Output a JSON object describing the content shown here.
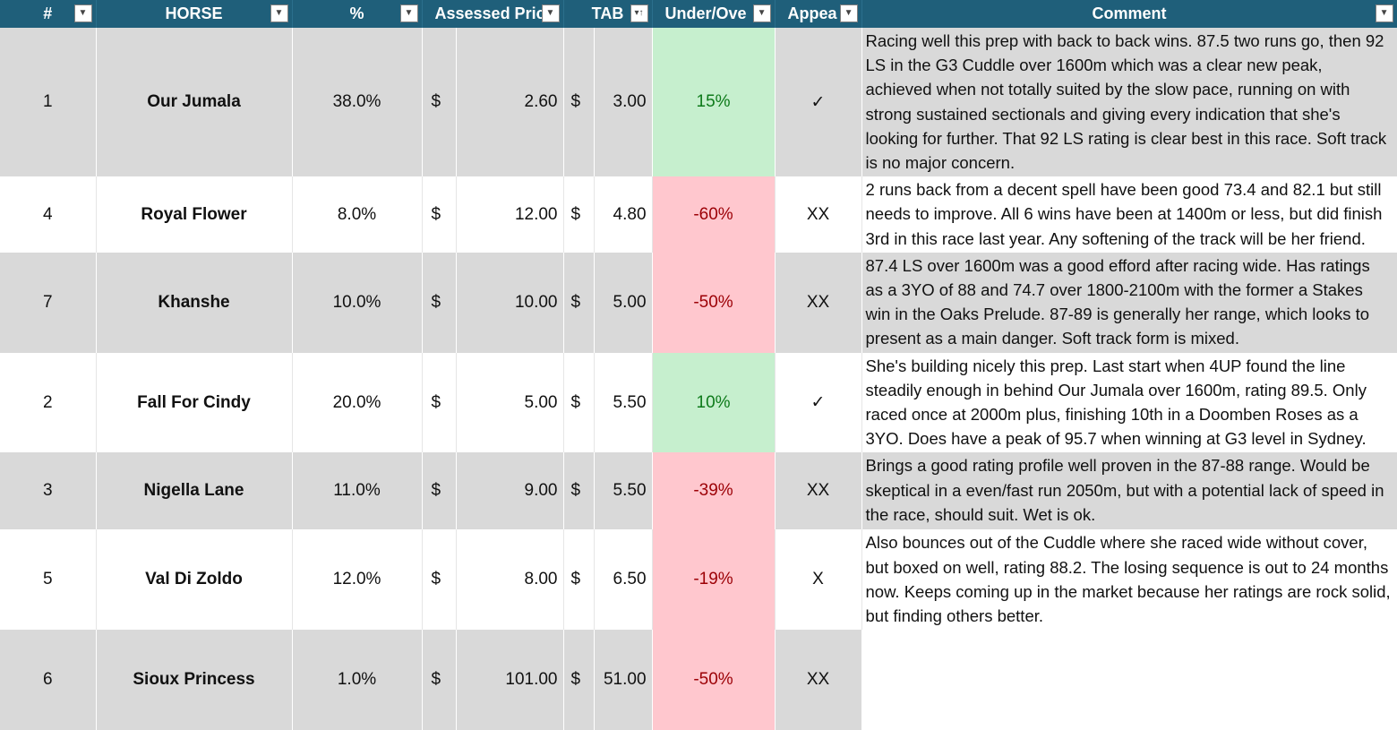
{
  "headers": {
    "num": "#",
    "horse": "HORSE",
    "pct": "%",
    "assessed": "Assessed Pric",
    "tab": "TAB",
    "under_over": "Under/Ove",
    "appeal": "Appea",
    "comment": "Comment"
  },
  "icons": {
    "filter": "dropdown-arrow",
    "sort": "sort-ascending"
  },
  "colors": {
    "header_bg": "#1f5f7a",
    "row_alt": "#d9d9d9",
    "good_fill": "#c6efce",
    "good_text": "#0d7a1a",
    "bad_fill": "#ffc7ce",
    "bad_text": "#9c0006"
  },
  "rows": [
    {
      "num": "1",
      "horse": "Our Jumala",
      "pct": "38.0%",
      "cur": "$",
      "assessed": "2.60",
      "tab_cur": "$",
      "tab": "3.00",
      "uo": "15%",
      "appeal": "✓",
      "comment": "Racing well this prep with back to back wins. 87.5 two runs go, then 92 LS in the G3 Cuddle over 1600m which was a clear new peak, achieved when not totally suited by the slow pace, running on with strong sustained sectionals and giving every indication that she's looking for further. That 92 LS rating is clear best in this race. Soft track is no major concern."
    },
    {
      "num": "4",
      "horse": "Royal Flower",
      "pct": "8.0%",
      "cur": "$",
      "assessed": "12.00",
      "tab_cur": "$",
      "tab": "4.80",
      "uo": "-60%",
      "appeal": "XX",
      "comment": "2 runs back from a decent spell have been good 73.4 and 82.1 but still needs to improve. All 6 wins have been at 1400m or less, but did finish 3rd in this race last year. Any softening of the track will be her friend."
    },
    {
      "num": "7",
      "horse": "Khanshe",
      "pct": "10.0%",
      "cur": "$",
      "assessed": "10.00",
      "tab_cur": "$",
      "tab": "5.00",
      "uo": "-50%",
      "appeal": "XX",
      "comment": "87.4 LS over 1600m was a good efford after racing wide. Has ratings as a 3YO of 88 and 74.7 over 1800-2100m with the former a Stakes win in the Oaks Prelude. 87-89 is generally her range, which looks to present as a main danger. Soft track form is mixed."
    },
    {
      "num": "2",
      "horse": "Fall For Cindy",
      "pct": "20.0%",
      "cur": "$",
      "assessed": "5.00",
      "tab_cur": "$",
      "tab": "5.50",
      "uo": "10%",
      "appeal": "✓",
      "comment": "She's building nicely this prep. Last start when 4UP found the line steadily enough in behind Our Jumala over 1600m, rating 89.5. Only raced once at 2000m plus, finishing 10th in a Doomben Roses as a 3YO. Does have a peak of 95.7 when winning at G3 level in Sydney."
    },
    {
      "num": "3",
      "horse": "Nigella Lane",
      "pct": "11.0%",
      "cur": "$",
      "assessed": "9.00",
      "tab_cur": "$",
      "tab": "5.50",
      "uo": "-39%",
      "appeal": "XX",
      "comment": "Brings a good rating profile well proven in the 87-88 range. Would be skeptical in a even/fast run 2050m, but with a potential lack of speed in the race, should suit. Wet is ok."
    },
    {
      "num": "5",
      "horse": "Val Di Zoldo",
      "pct": "12.0%",
      "cur": "$",
      "assessed": "8.00",
      "tab_cur": "$",
      "tab": "6.50",
      "uo": "-19%",
      "appeal": "X",
      "comment": "Also bounces out of the Cuddle where she raced wide without cover, but boxed on well, rating 88.2. The losing sequence is out to 24 months now. Keeps coming up in the market because her ratings are rock solid, but finding others better."
    },
    {
      "num": "6",
      "horse": "Sioux Princess",
      "pct": "1.0%",
      "cur": "$",
      "assessed": "101.00",
      "tab_cur": "$",
      "tab": "51.00",
      "uo": "-50%",
      "appeal": "XX",
      "comment": ""
    }
  ]
}
